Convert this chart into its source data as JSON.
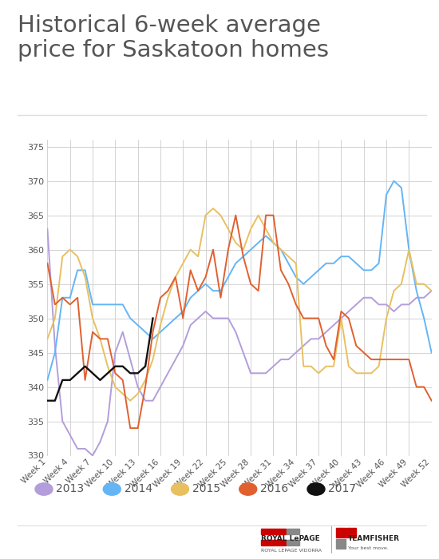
{
  "title": "Historical 6-week average\nprice for Saskatoon homes",
  "title_color": "#555555",
  "background_color": "#ffffff",
  "grid_color": "#cccccc",
  "ylim": [
    330,
    376
  ],
  "yticks": [
    330,
    335,
    340,
    345,
    350,
    355,
    360,
    365,
    370,
    375
  ],
  "xtick_weeks": [
    1,
    4,
    7,
    10,
    13,
    16,
    19,
    22,
    25,
    28,
    31,
    34,
    37,
    40,
    43,
    46,
    49,
    52
  ],
  "xtick_labels": [
    "Week 1",
    "Week 4",
    "Week 7",
    "Week 10",
    "Week 13",
    "Week 16",
    "Week 19",
    "Week 22",
    "Week 25",
    "Week 28",
    "Week 31",
    "Week 34",
    "Week 37",
    "Week 40",
    "Week 43",
    "Week 46",
    "Week 49",
    "Week 52"
  ],
  "series_2013": [
    363,
    346,
    335,
    333,
    331,
    331,
    330,
    332,
    335,
    345,
    348,
    344,
    340,
    338,
    338,
    340,
    342,
    344,
    346,
    349,
    350,
    351,
    350,
    350,
    350,
    348,
    345,
    342,
    342,
    342,
    343,
    344,
    344,
    345,
    346,
    347,
    347,
    348,
    349,
    350,
    351,
    352,
    353,
    353,
    352,
    352,
    351,
    352,
    352,
    353,
    353,
    354
  ],
  "series_2014": [
    341,
    345,
    353,
    353,
    357,
    357,
    352,
    352,
    352,
    352,
    352,
    350,
    349,
    348,
    347,
    348,
    349,
    350,
    351,
    353,
    354,
    355,
    354,
    354,
    356,
    358,
    359,
    360,
    361,
    362,
    361,
    360,
    358,
    356,
    355,
    356,
    357,
    358,
    358,
    359,
    359,
    358,
    357,
    357,
    358,
    368,
    370,
    369,
    360,
    354,
    350,
    345
  ],
  "series_2015": [
    347,
    350,
    359,
    360,
    359,
    356,
    350,
    347,
    343,
    340,
    339,
    338,
    339,
    341,
    344,
    349,
    353,
    356,
    358,
    360,
    359,
    365,
    366,
    365,
    363,
    361,
    360,
    363,
    365,
    363,
    361,
    360,
    359,
    358,
    343,
    343,
    342,
    343,
    343,
    350,
    343,
    342,
    342,
    342,
    343,
    350,
    354,
    355,
    360,
    355,
    355,
    354
  ],
  "series_2016": [
    358,
    352,
    353,
    352,
    353,
    341,
    348,
    347,
    347,
    342,
    341,
    334,
    334,
    340,
    348,
    353,
    354,
    356,
    350,
    357,
    354,
    356,
    360,
    353,
    360,
    365,
    359,
    355,
    354,
    365,
    365,
    357,
    355,
    352,
    350,
    350,
    350,
    346,
    344,
    351,
    350,
    346,
    345,
    344,
    344,
    344,
    344,
    344,
    344,
    340,
    340,
    338
  ],
  "series_2017": [
    338,
    338,
    341,
    341,
    342,
    343,
    342,
    341,
    342,
    343,
    343,
    342,
    342,
    343,
    350
  ],
  "color_2013": "#b39ddb",
  "color_2014": "#64b5f6",
  "color_2015": "#e8c060",
  "color_2016": "#e06030",
  "color_2017": "#111111",
  "legend": [
    {
      "label": "2013",
      "color": "#b39ddb"
    },
    {
      "label": "2014",
      "color": "#64b5f6"
    },
    {
      "label": "2015",
      "color": "#e8c060"
    },
    {
      "label": "2016",
      "color": "#e06030"
    },
    {
      "label": "2017",
      "color": "#111111"
    }
  ]
}
